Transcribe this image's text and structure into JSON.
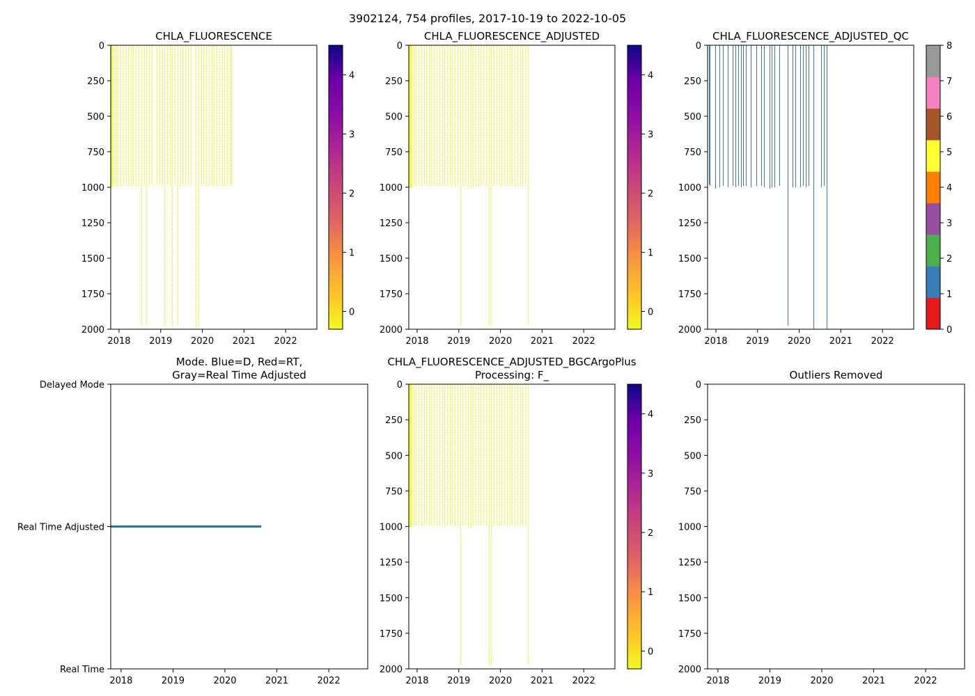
{
  "suptitle": "3902124, 754 profiles, 2017-10-19 to 2022-10-05",
  "chart_data": [
    {
      "id": "p1",
      "type": "heatmap",
      "title": [
        "CHLA_FLUORESCENCE"
      ],
      "xlim": [
        2017.8,
        2022.75
      ],
      "ylim": [
        2000,
        0
      ],
      "xticks": [
        2018,
        2019,
        2020,
        2021,
        2022
      ],
      "xtick_labels": [
        "2018",
        "2019",
        "2020",
        "2021",
        "2022"
      ],
      "yticks": [
        0,
        250,
        500,
        750,
        1000,
        1250,
        1500,
        1750,
        2000
      ],
      "ytick_labels": [
        "0",
        "250",
        "500",
        "750",
        "1000",
        "1250",
        "1500",
        "1750",
        "2000"
      ],
      "value_color": "#f0f921",
      "bands": [
        {
          "x0": 2017.8,
          "x1": 2017.85,
          "depth": 1000
        }
      ],
      "profiles": [
        {
          "x": 2017.87,
          "depth": 990
        },
        {
          "x": 2017.92,
          "depth": 1000
        },
        {
          "x": 2017.97,
          "depth": 990
        },
        {
          "x": 2018.03,
          "depth": 1000
        },
        {
          "x": 2018.1,
          "depth": 990
        },
        {
          "x": 2018.16,
          "depth": 990
        },
        {
          "x": 2018.22,
          "depth": 1000
        },
        {
          "x": 2018.28,
          "depth": 990
        },
        {
          "x": 2018.34,
          "depth": 990
        },
        {
          "x": 2018.41,
          "depth": 1000
        },
        {
          "x": 2018.47,
          "depth": 990
        },
        {
          "x": 2018.53,
          "depth": 1975
        },
        {
          "x": 2018.6,
          "depth": 990
        },
        {
          "x": 2018.66,
          "depth": 1975
        },
        {
          "x": 2018.72,
          "depth": 990
        },
        {
          "x": 2018.78,
          "depth": 990
        },
        {
          "x": 2018.91,
          "depth": 990
        },
        {
          "x": 2018.97,
          "depth": 990
        },
        {
          "x": 2019.03,
          "depth": 990
        },
        {
          "x": 2019.09,
          "depth": 1985
        },
        {
          "x": 2019.16,
          "depth": 990
        },
        {
          "x": 2019.22,
          "depth": 1000
        },
        {
          "x": 2019.27,
          "depth": 1985
        },
        {
          "x": 2019.34,
          "depth": 990
        },
        {
          "x": 2019.41,
          "depth": 1975
        },
        {
          "x": 2019.47,
          "depth": 1000
        },
        {
          "x": 2019.53,
          "depth": 990
        },
        {
          "x": 2019.59,
          "depth": 990
        },
        {
          "x": 2019.66,
          "depth": 990
        },
        {
          "x": 2019.72,
          "depth": 990
        },
        {
          "x": 2019.84,
          "depth": 1985
        },
        {
          "x": 2019.9,
          "depth": 1985
        },
        {
          "x": 2019.97,
          "depth": 990
        },
        {
          "x": 2020.03,
          "depth": 990
        },
        {
          "x": 2020.09,
          "depth": 990
        },
        {
          "x": 2020.16,
          "depth": 1000
        },
        {
          "x": 2020.22,
          "depth": 990
        },
        {
          "x": 2020.28,
          "depth": 990
        },
        {
          "x": 2020.34,
          "depth": 1000
        },
        {
          "x": 2020.41,
          "depth": 990
        },
        {
          "x": 2020.47,
          "depth": 990
        },
        {
          "x": 2020.53,
          "depth": 1000
        },
        {
          "x": 2020.59,
          "depth": 990
        },
        {
          "x": 2020.66,
          "depth": 1000
        },
        {
          "x": 2020.7,
          "depth": 990
        }
      ],
      "colorbar": {
        "type": "continuous",
        "colormap": "plasma_r",
        "vmin": -0.3,
        "vmax": 4.5,
        "ticks": [
          0,
          1,
          2,
          3,
          4
        ],
        "tick_labels": [
          "0",
          "1",
          "2",
          "3",
          "4"
        ]
      }
    },
    {
      "id": "p2",
      "type": "heatmap",
      "title": [
        "CHLA_FLUORESCENCE_ADJUSTED"
      ],
      "xlim": [
        2017.8,
        2022.75
      ],
      "ylim": [
        2000,
        0
      ],
      "xticks": [
        2018,
        2019,
        2020,
        2021,
        2022
      ],
      "xtick_labels": [
        "2018",
        "2019",
        "2020",
        "2021",
        "2022"
      ],
      "yticks": [
        0,
        250,
        500,
        750,
        1000,
        1250,
        1500,
        1750,
        2000
      ],
      "ytick_labels": [
        "0",
        "250",
        "500",
        "750",
        "1000",
        "1250",
        "1500",
        "1750",
        "2000"
      ],
      "value_color": "#f0f921",
      "bands": [
        {
          "x0": 2017.8,
          "x1": 2017.88,
          "depth": 1000
        }
      ],
      "profiles": [
        {
          "x": 2017.92,
          "depth": 990
        },
        {
          "x": 2017.97,
          "depth": 1000
        },
        {
          "x": 2018.03,
          "depth": 990
        },
        {
          "x": 2018.1,
          "depth": 1000
        },
        {
          "x": 2018.16,
          "depth": 990
        },
        {
          "x": 2018.22,
          "depth": 990
        },
        {
          "x": 2018.28,
          "depth": 1000
        },
        {
          "x": 2018.34,
          "depth": 990
        },
        {
          "x": 2018.41,
          "depth": 990
        },
        {
          "x": 2018.47,
          "depth": 1000
        },
        {
          "x": 2018.53,
          "depth": 990
        },
        {
          "x": 2018.6,
          "depth": 990
        },
        {
          "x": 2018.66,
          "depth": 990
        },
        {
          "x": 2018.72,
          "depth": 990
        },
        {
          "x": 2018.78,
          "depth": 990
        },
        {
          "x": 2018.84,
          "depth": 990
        },
        {
          "x": 2018.91,
          "depth": 1000
        },
        {
          "x": 2018.97,
          "depth": 990
        },
        {
          "x": 2019.03,
          "depth": 1975
        },
        {
          "x": 2019.09,
          "depth": 990
        },
        {
          "x": 2019.16,
          "depth": 1000
        },
        {
          "x": 2019.22,
          "depth": 1010
        },
        {
          "x": 2019.28,
          "depth": 1010
        },
        {
          "x": 2019.34,
          "depth": 1000
        },
        {
          "x": 2019.41,
          "depth": 990
        },
        {
          "x": 2019.47,
          "depth": 1000
        },
        {
          "x": 2019.53,
          "depth": 990
        },
        {
          "x": 2019.59,
          "depth": 990
        },
        {
          "x": 2019.66,
          "depth": 990
        },
        {
          "x": 2019.72,
          "depth": 1975
        },
        {
          "x": 2019.77,
          "depth": 1975
        },
        {
          "x": 2019.84,
          "depth": 990
        },
        {
          "x": 2019.9,
          "depth": 990
        },
        {
          "x": 2019.97,
          "depth": 1000
        },
        {
          "x": 2020.03,
          "depth": 990
        },
        {
          "x": 2020.09,
          "depth": 990
        },
        {
          "x": 2020.16,
          "depth": 1000
        },
        {
          "x": 2020.22,
          "depth": 990
        },
        {
          "x": 2020.28,
          "depth": 990
        },
        {
          "x": 2020.34,
          "depth": 1000
        },
        {
          "x": 2020.41,
          "depth": 990
        },
        {
          "x": 2020.47,
          "depth": 990
        },
        {
          "x": 2020.53,
          "depth": 1000
        },
        {
          "x": 2020.59,
          "depth": 990
        },
        {
          "x": 2020.66,
          "depth": 1975
        }
      ],
      "colorbar": {
        "type": "continuous",
        "colormap": "plasma_r",
        "vmin": -0.3,
        "vmax": 4.5,
        "ticks": [
          0,
          1,
          2,
          3,
          4
        ],
        "tick_labels": [
          "0",
          "1",
          "2",
          "3",
          "4"
        ]
      }
    },
    {
      "id": "p3",
      "type": "heatmap",
      "title": [
        "CHLA_FLUORESCENCE_ADJUSTED_QC"
      ],
      "xlim": [
        2017.8,
        2022.75
      ],
      "ylim": [
        2000,
        0
      ],
      "xticks": [
        2018,
        2019,
        2020,
        2021,
        2022
      ],
      "xtick_labels": [
        "2018",
        "2019",
        "2020",
        "2021",
        "2022"
      ],
      "yticks": [
        0,
        250,
        500,
        750,
        1000,
        1250,
        1500,
        1750,
        2000
      ],
      "ytick_labels": [
        "0",
        "250",
        "500",
        "750",
        "1000",
        "1250",
        "1500",
        "1750",
        "2000"
      ],
      "value_color": "#3b76af",
      "bands": [],
      "profiles": [
        {
          "x": 2017.83,
          "depth": 980
        },
        {
          "x": 2017.85,
          "depth": 990
        },
        {
          "x": 2017.98,
          "depth": 1010
        },
        {
          "x": 2018.08,
          "depth": 1000
        },
        {
          "x": 2018.16,
          "depth": 990
        },
        {
          "x": 2018.28,
          "depth": 1000
        },
        {
          "x": 2018.41,
          "depth": 990
        },
        {
          "x": 2018.47,
          "depth": 1000
        },
        {
          "x": 2018.53,
          "depth": 990
        },
        {
          "x": 2018.6,
          "depth": 1000
        },
        {
          "x": 2018.66,
          "depth": 990
        },
        {
          "x": 2018.72,
          "depth": 990
        },
        {
          "x": 2018.84,
          "depth": 1000
        },
        {
          "x": 2018.97,
          "depth": 990
        },
        {
          "x": 2019.09,
          "depth": 990
        },
        {
          "x": 2019.16,
          "depth": 1000
        },
        {
          "x": 2019.28,
          "depth": 1010
        },
        {
          "x": 2019.34,
          "depth": 1000
        },
        {
          "x": 2019.41,
          "depth": 1000
        },
        {
          "x": 2019.53,
          "depth": 990
        },
        {
          "x": 2019.72,
          "depth": 1975
        },
        {
          "x": 2019.84,
          "depth": 1000
        },
        {
          "x": 2019.91,
          "depth": 1000
        },
        {
          "x": 2020.03,
          "depth": 1000
        },
        {
          "x": 2020.09,
          "depth": 990
        },
        {
          "x": 2020.16,
          "depth": 1000
        },
        {
          "x": 2020.22,
          "depth": 990
        },
        {
          "x": 2020.34,
          "depth": 2000
        },
        {
          "x": 2020.53,
          "depth": 1000
        },
        {
          "x": 2020.6,
          "depth": 990
        },
        {
          "x": 2020.66,
          "depth": 2000
        }
      ],
      "colorbar": {
        "type": "discrete",
        "vmin": 0,
        "vmax": 8,
        "colors": [
          "#e41a1c",
          "#377eb8",
          "#4daf4a",
          "#984ea3",
          "#ff7f00",
          "#ffff33",
          "#a65628",
          "#f781bf",
          "#999999"
        ],
        "ticks": [
          0,
          1,
          2,
          3,
          4,
          5,
          6,
          7,
          8
        ],
        "tick_labels": [
          "0",
          "1",
          "2",
          "3",
          "4",
          "5",
          "6",
          "7",
          "8"
        ]
      }
    },
    {
      "id": "p4",
      "type": "line",
      "title": [
        "Mode. Blue=D, Red=RT,",
        "Gray=Real Time Adjusted"
      ],
      "xlim": [
        2017.8,
        2022.75
      ],
      "ylim": [
        0,
        2
      ],
      "xticks": [
        2018,
        2019,
        2020,
        2021,
        2022
      ],
      "xtick_labels": [
        "2018",
        "2019",
        "2020",
        "2021",
        "2022"
      ],
      "yticks": [
        2,
        1,
        0
      ],
      "ytick_labels": [
        "Delayed Mode",
        "Real Time Adjusted",
        "Real Time"
      ],
      "series": [
        {
          "name": "mode",
          "color": "#1f77b4",
          "x": [
            2017.8,
            2020.7
          ],
          "y": [
            1,
            1
          ]
        }
      ]
    },
    {
      "id": "p5",
      "type": "heatmap",
      "title": [
        "CHLA_FLUORESCENCE_ADJUSTED_BGCArgoPlus",
        "Processing: F_"
      ],
      "xlim": [
        2017.8,
        2022.75
      ],
      "ylim": [
        2000,
        0
      ],
      "xticks": [
        2018,
        2019,
        2020,
        2021,
        2022
      ],
      "xtick_labels": [
        "2018",
        "2019",
        "2020",
        "2021",
        "2022"
      ],
      "yticks": [
        0,
        250,
        500,
        750,
        1000,
        1250,
        1500,
        1750,
        2000
      ],
      "ytick_labels": [
        "0",
        "250",
        "500",
        "750",
        "1000",
        "1250",
        "1500",
        "1750",
        "2000"
      ],
      "value_color": "#f0f921",
      "bands": [
        {
          "x0": 2017.8,
          "x1": 2017.88,
          "depth": 1000
        }
      ],
      "profiles": [
        {
          "x": 2017.92,
          "depth": 990
        },
        {
          "x": 2017.97,
          "depth": 1000
        },
        {
          "x": 2018.03,
          "depth": 990
        },
        {
          "x": 2018.1,
          "depth": 1000
        },
        {
          "x": 2018.16,
          "depth": 990
        },
        {
          "x": 2018.22,
          "depth": 990
        },
        {
          "x": 2018.28,
          "depth": 1000
        },
        {
          "x": 2018.34,
          "depth": 990
        },
        {
          "x": 2018.41,
          "depth": 990
        },
        {
          "x": 2018.47,
          "depth": 1000
        },
        {
          "x": 2018.53,
          "depth": 990
        },
        {
          "x": 2018.6,
          "depth": 990
        },
        {
          "x": 2018.66,
          "depth": 990
        },
        {
          "x": 2018.72,
          "depth": 990
        },
        {
          "x": 2018.78,
          "depth": 990
        },
        {
          "x": 2018.84,
          "depth": 990
        },
        {
          "x": 2018.91,
          "depth": 1000
        },
        {
          "x": 2018.97,
          "depth": 990
        },
        {
          "x": 2019.03,
          "depth": 1975
        },
        {
          "x": 2019.09,
          "depth": 990
        },
        {
          "x": 2019.16,
          "depth": 1000
        },
        {
          "x": 2019.22,
          "depth": 1010
        },
        {
          "x": 2019.28,
          "depth": 1010
        },
        {
          "x": 2019.34,
          "depth": 1000
        },
        {
          "x": 2019.41,
          "depth": 990
        },
        {
          "x": 2019.47,
          "depth": 1000
        },
        {
          "x": 2019.53,
          "depth": 990
        },
        {
          "x": 2019.59,
          "depth": 990
        },
        {
          "x": 2019.66,
          "depth": 990
        },
        {
          "x": 2019.72,
          "depth": 1975
        },
        {
          "x": 2019.77,
          "depth": 1975
        },
        {
          "x": 2019.84,
          "depth": 990
        },
        {
          "x": 2019.9,
          "depth": 990
        },
        {
          "x": 2019.97,
          "depth": 1000
        },
        {
          "x": 2020.03,
          "depth": 990
        },
        {
          "x": 2020.09,
          "depth": 990
        },
        {
          "x": 2020.16,
          "depth": 1000
        },
        {
          "x": 2020.22,
          "depth": 990
        },
        {
          "x": 2020.28,
          "depth": 990
        },
        {
          "x": 2020.34,
          "depth": 1000
        },
        {
          "x": 2020.41,
          "depth": 990
        },
        {
          "x": 2020.47,
          "depth": 990
        },
        {
          "x": 2020.53,
          "depth": 1000
        },
        {
          "x": 2020.59,
          "depth": 990
        },
        {
          "x": 2020.66,
          "depth": 1975
        }
      ],
      "colorbar": {
        "type": "continuous",
        "colormap": "plasma_r",
        "vmin": -0.3,
        "vmax": 4.5,
        "ticks": [
          0,
          1,
          2,
          3,
          4
        ],
        "tick_labels": [
          "0",
          "1",
          "2",
          "3",
          "4"
        ]
      }
    },
    {
      "id": "p6",
      "type": "heatmap",
      "title": [
        "Outliers Removed"
      ],
      "xlim": [
        2017.8,
        2022.75
      ],
      "ylim": [
        2000,
        0
      ],
      "xticks": [
        2018,
        2019,
        2020,
        2021,
        2022
      ],
      "xtick_labels": [
        "2018",
        "2019",
        "2020",
        "2021",
        "2022"
      ],
      "yticks": [
        0,
        250,
        500,
        750,
        1000,
        1250,
        1500,
        1750,
        2000
      ],
      "ytick_labels": [
        "0",
        "250",
        "500",
        "750",
        "1000",
        "1250",
        "1500",
        "1750",
        "2000"
      ],
      "value_color": "#f0f921",
      "bands": [],
      "profiles": []
    }
  ]
}
